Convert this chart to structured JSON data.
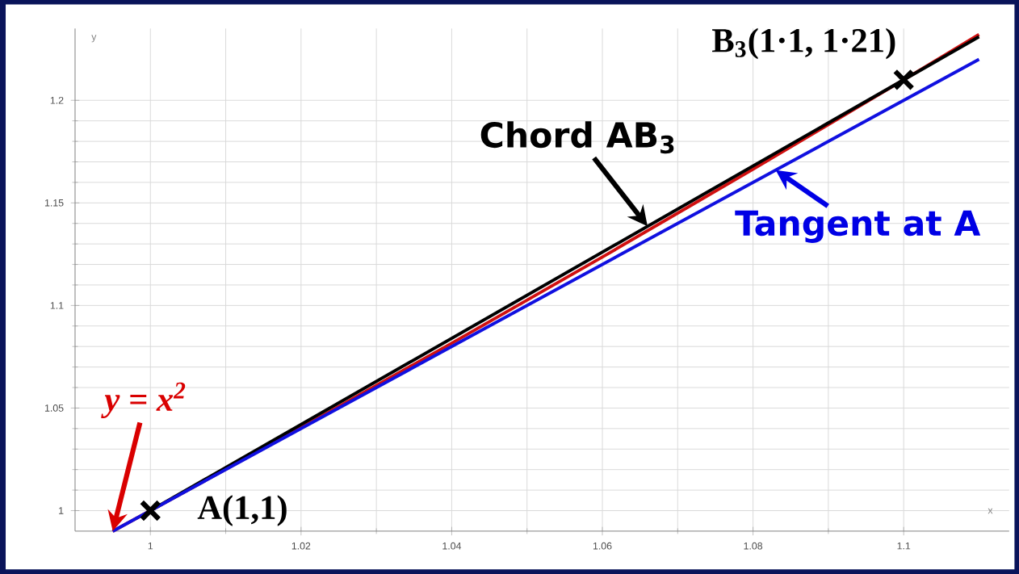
{
  "chart_data": {
    "type": "line",
    "xlabel": "x",
    "ylabel": "y",
    "xlim": [
      0.99,
      1.114
    ],
    "ylim": [
      0.99,
      1.235
    ],
    "xticks": [
      1,
      1.02,
      1.04,
      1.06,
      1.08,
      1.1
    ],
    "yticks": [
      1,
      1.05,
      1.1,
      1.15,
      1.2
    ],
    "grid": true,
    "series": [
      {
        "color": "#d01010",
        "x": [
          0.995,
          1.0,
          1.02,
          1.04,
          1.06,
          1.08,
          1.1,
          1.11
        ],
        "values": [
          0.99,
          1,
          1.0404,
          1.0816,
          1.1236,
          1.1664,
          1.21,
          1.2321
        ]
      },
      {
        "color": "#000000",
        "x": [
          1.0,
          1.11
        ],
        "values": [
          1.0,
          1.231
        ]
      },
      {
        "color": "#1010e0",
        "x": [
          0.995,
          1.11
        ],
        "values": [
          0.99,
          1.22
        ]
      },
      {
        "type": "scatter",
        "color": "#000000",
        "marker": "cross",
        "x": [
          1,
          1.1
        ],
        "values": [
          1,
          1.21
        ]
      }
    ],
    "annotations": [
      "y = x$^{2}$",
      {
        "text": "A(1,1)",
        "x": 1,
        "y": 1
      },
      {
        "text": "B$_{3}$(1·1, 1·21)",
        "x": 1.1,
        "y": 1.21
      },
      {
        "text": "Chord AB$_{3}$",
        "x": 1.066,
        "y": 1.1386
      },
      {
        "text": "Tangent at A",
        "x": 1.083,
        "y": 1.166
      }
    ]
  }
}
